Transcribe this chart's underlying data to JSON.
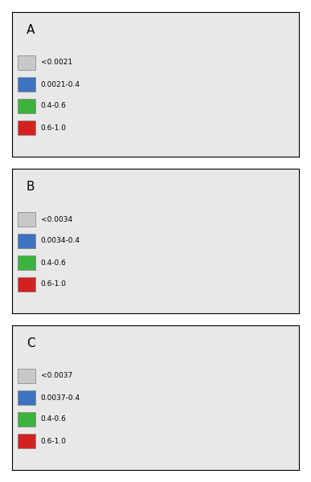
{
  "panels": [
    {
      "label": "A",
      "legend_items": [
        {
          "color": "#c8c8c8",
          "text": "<0.0021"
        },
        {
          "color": "#3e72c0",
          "text": "0.0021-0.4"
        },
        {
          "color": "#3cb33c",
          "text": "0.4-0.6"
        },
        {
          "color": "#d42020",
          "text": "0.6-1.0"
        }
      ]
    },
    {
      "label": "B",
      "legend_items": [
        {
          "color": "#c8c8c8",
          "text": "<0.0034"
        },
        {
          "color": "#3e72c0",
          "text": "0.0034-0.4"
        },
        {
          "color": "#3cb33c",
          "text": "0.4-0.6"
        },
        {
          "color": "#d42020",
          "text": "0.6-1.0"
        }
      ]
    },
    {
      "label": "C",
      "legend_items": [
        {
          "color": "#c8c8c8",
          "text": "<0.0037"
        },
        {
          "color": "#3e72c0",
          "text": "0.0037-0.4"
        },
        {
          "color": "#3cb33c",
          "text": "0.4-0.6"
        },
        {
          "color": "#d42020",
          "text": "0.6-1.0"
        }
      ]
    }
  ],
  "background_color": "#ffffff",
  "map_bg": "#c8c8c8",
  "ocean_color": "#ffffff",
  "border_color": "#404040",
  "legend_fontsize": 6.5,
  "label_fontsize": 11
}
